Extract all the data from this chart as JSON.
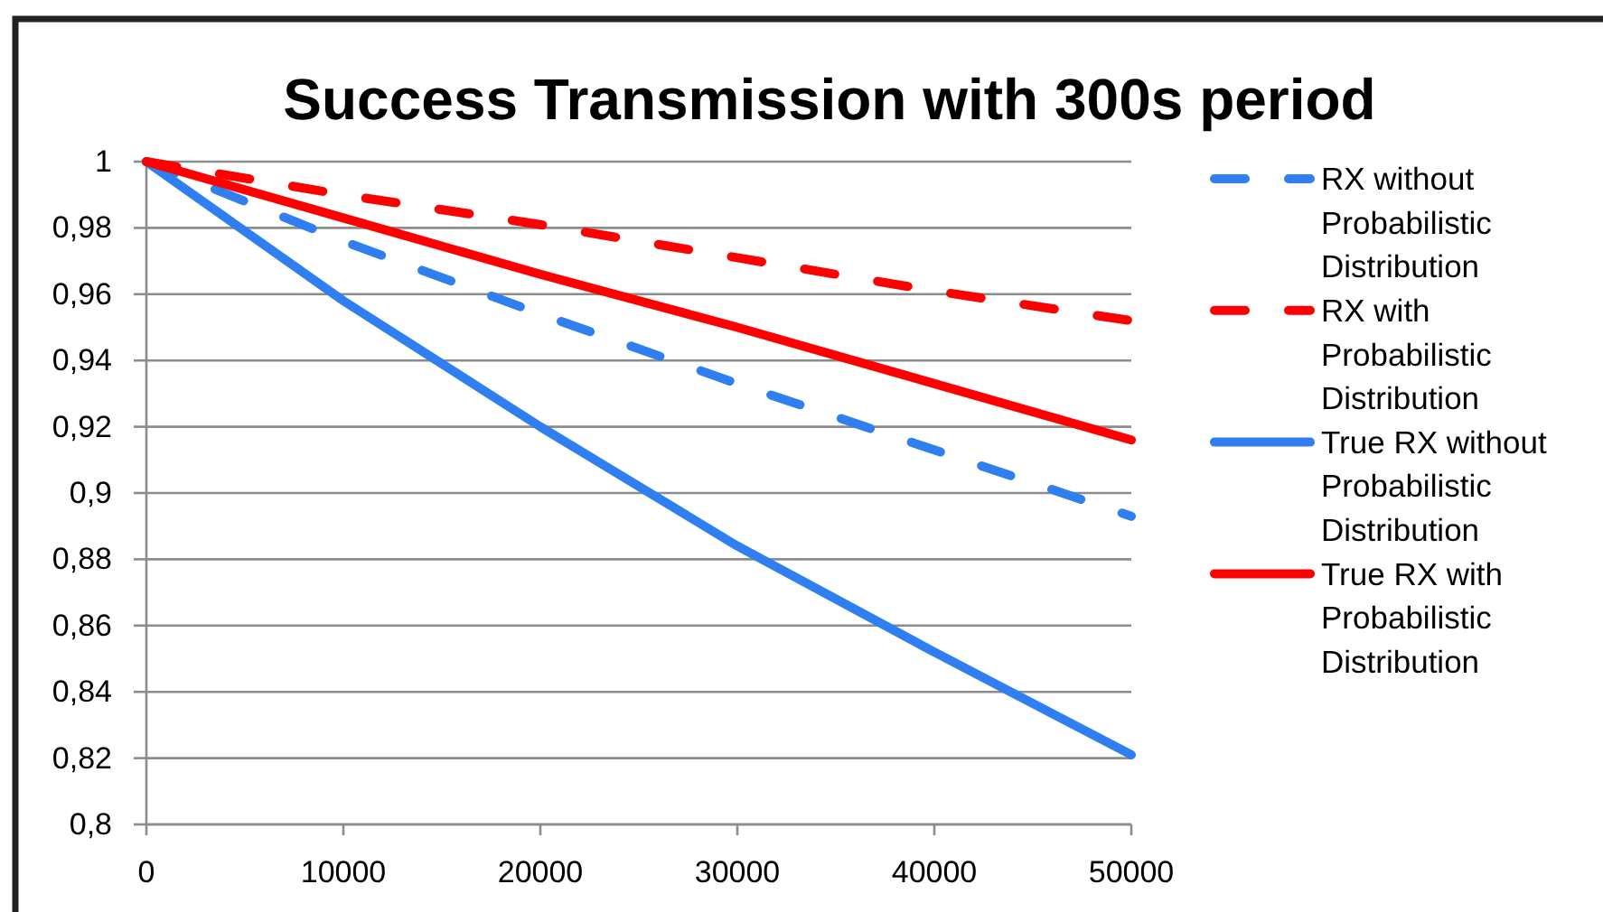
{
  "chart_data": {
    "type": "line",
    "title": "Success Transmission with 300s period",
    "x": [
      0,
      10000,
      20000,
      30000,
      40000,
      50000
    ],
    "xlim": [
      0,
      50000
    ],
    "xticks": [
      0,
      10000,
      20000,
      30000,
      40000,
      50000
    ],
    "ylim": [
      0.8,
      1
    ],
    "yticks": [
      {
        "value": 0.8,
        "label": "0,8"
      },
      {
        "value": 0.82,
        "label": "0,82"
      },
      {
        "value": 0.84,
        "label": "0,84"
      },
      {
        "value": 0.86,
        "label": "0,86"
      },
      {
        "value": 0.88,
        "label": "0,88"
      },
      {
        "value": 0.9,
        "label": "0,9"
      },
      {
        "value": 0.92,
        "label": "0,92"
      },
      {
        "value": 0.94,
        "label": "0,94"
      },
      {
        "value": 0.96,
        "label": "0,96"
      },
      {
        "value": 0.98,
        "label": "0,98"
      },
      1
    ],
    "grid": "y",
    "legend": "right",
    "series": [
      {
        "name": "RX without Probabilistic Distribution",
        "color": "#2f7ff0",
        "line_style": "dashed",
        "values": [
          1,
          0.976,
          0.954,
          0.933,
          0.913,
          0.893
        ]
      },
      {
        "name": "RX with Probabilistic Distribution",
        "color": "#ff0000",
        "line_style": "dashed",
        "values": [
          1,
          0.99,
          0.981,
          0.971,
          0.961,
          0.952
        ]
      },
      {
        "name": "True RX without Probabilistic Distribution",
        "color": "#2f7ff0",
        "line_style": "solid",
        "values": [
          1,
          0.958,
          0.92,
          0.884,
          0.852,
          0.821
        ]
      },
      {
        "name": "True RX with Probabilistic Distribution",
        "color": "#ff0000",
        "line_style": "solid",
        "values": [
          1,
          0.983,
          0.966,
          0.95,
          0.933,
          0.916
        ]
      }
    ]
  }
}
